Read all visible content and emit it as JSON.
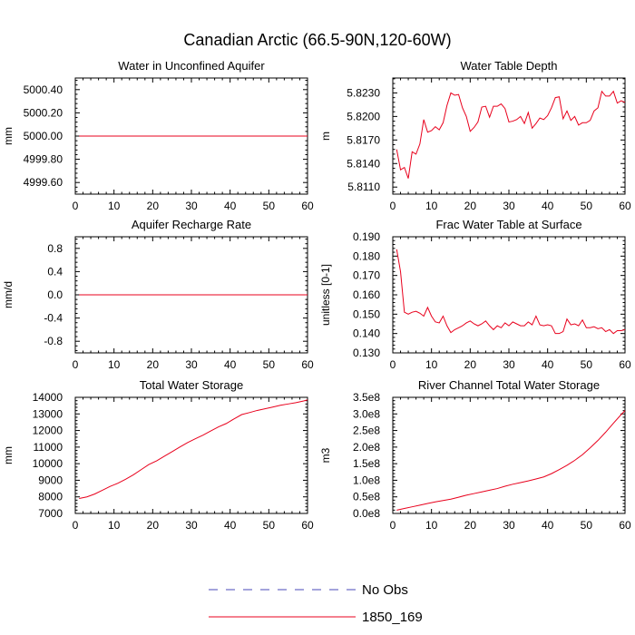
{
  "figure": {
    "title": "Canadian Arctic (66.5-90N,120-60W)",
    "legend": [
      {
        "label": "No Obs",
        "color": "#4a4ab8",
        "dash": "dashed"
      },
      {
        "label": "1850_169",
        "color": "#e8001c",
        "dash": "solid"
      }
    ]
  },
  "chart_data": [
    {
      "type": "line",
      "title": "Water in Unconfined Aquifer",
      "ylabel": "mm",
      "xlim": [
        0,
        60
      ],
      "ylim": [
        4999.5,
        5000.5
      ],
      "xticks": [
        0,
        10,
        20,
        30,
        40,
        50,
        60
      ],
      "yticks": [
        4999.6,
        4999.8,
        5000.0,
        5000.2,
        5000.4
      ],
      "yticklabels": [
        "4999.60",
        "4999.80",
        "5000.00",
        "5000.20",
        "5000.40"
      ],
      "series": [
        {
          "name": "1850_169",
          "color": "#e8001c",
          "x": [
            1,
            60
          ],
          "values": [
            5000.0,
            5000.0
          ]
        }
      ]
    },
    {
      "type": "line",
      "title": "Water Table Depth",
      "ylabel": "m",
      "xlim": [
        0,
        60
      ],
      "ylim": [
        5.8101,
        5.8249
      ],
      "xticks": [
        0,
        10,
        20,
        30,
        40,
        50,
        60
      ],
      "yticks": [
        5.811,
        5.814,
        5.817,
        5.82,
        5.823
      ],
      "yticklabels": [
        "5.8110",
        "5.8140",
        "5.8170",
        "5.8200",
        "5.8230"
      ],
      "series": [
        {
          "name": "1850_169",
          "color": "#e8001c",
          "x": [
            1,
            2,
            3,
            4,
            5,
            6,
            7,
            8,
            9,
            10,
            11,
            12,
            13,
            14,
            15,
            16,
            17,
            18,
            19,
            20,
            21,
            22,
            23,
            24,
            25,
            26,
            27,
            28,
            29,
            30,
            31,
            32,
            33,
            34,
            35,
            36,
            37,
            38,
            39,
            40,
            41,
            42,
            43,
            44,
            45,
            46,
            47,
            48,
            49,
            50,
            51,
            52,
            53,
            54,
            55,
            56,
            57,
            58,
            59,
            60
          ],
          "values": [
            5.8158,
            5.8132,
            5.8135,
            5.8121,
            5.8155,
            5.8152,
            5.8165,
            5.8196,
            5.818,
            5.8182,
            5.8187,
            5.8183,
            5.8192,
            5.8214,
            5.823,
            5.8227,
            5.8228,
            5.8211,
            5.82,
            5.8181,
            5.8186,
            5.8193,
            5.8212,
            5.8213,
            5.8199,
            5.8213,
            5.8213,
            5.8216,
            5.821,
            5.8193,
            5.8194,
            5.8196,
            5.82,
            5.8191,
            5.8205,
            5.8185,
            5.8191,
            5.8198,
            5.8196,
            5.8201,
            5.8211,
            5.8224,
            5.8225,
            5.8197,
            5.8207,
            5.8195,
            5.82,
            5.8189,
            5.8192,
            5.8192,
            5.8195,
            5.8207,
            5.8211,
            5.8232,
            5.8226,
            5.8226,
            5.8232,
            5.8217,
            5.822,
            5.8218
          ]
        }
      ]
    },
    {
      "type": "line",
      "title": "Aquifer Recharge Rate",
      "ylabel": "mm/d",
      "xlim": [
        0,
        60
      ],
      "ylim": [
        -1.0,
        1.0
      ],
      "xticks": [
        0,
        10,
        20,
        30,
        40,
        50,
        60
      ],
      "yticks": [
        -0.8,
        -0.4,
        0.0,
        0.4,
        0.8
      ],
      "yticklabels": [
        "-0.8",
        "-0.4",
        "0.0",
        "0.4",
        "0.8"
      ],
      "series": [
        {
          "name": "1850_169",
          "color": "#e8001c",
          "x": [
            1,
            60
          ],
          "values": [
            0.0,
            0.0
          ]
        }
      ]
    },
    {
      "type": "line",
      "title": "Frac Water Table at Surface",
      "ylabel": "unitless [0-1]",
      "xlim": [
        0,
        60
      ],
      "ylim": [
        0.13,
        0.19
      ],
      "xticks": [
        0,
        10,
        20,
        30,
        40,
        50,
        60
      ],
      "yticks": [
        0.13,
        0.14,
        0.15,
        0.16,
        0.17,
        0.18,
        0.19
      ],
      "yticklabels": [
        "0.130",
        "0.140",
        "0.150",
        "0.160",
        "0.170",
        "0.180",
        "0.190"
      ],
      "series": [
        {
          "name": "1850_169",
          "color": "#e8001c",
          "x": [
            1,
            2,
            3,
            4,
            5,
            6,
            7,
            8,
            9,
            10,
            11,
            12,
            13,
            14,
            15,
            16,
            17,
            18,
            19,
            20,
            21,
            22,
            23,
            24,
            25,
            26,
            27,
            28,
            29,
            30,
            31,
            32,
            33,
            34,
            35,
            36,
            37,
            38,
            39,
            40,
            41,
            42,
            43,
            44,
            45,
            46,
            47,
            48,
            49,
            50,
            51,
            52,
            53,
            54,
            55,
            56,
            57,
            58,
            59,
            60
          ],
          "values": [
            0.1835,
            0.172,
            0.151,
            0.15,
            0.151,
            0.1515,
            0.1505,
            0.149,
            0.1535,
            0.149,
            0.146,
            0.1455,
            0.149,
            0.144,
            0.1405,
            0.142,
            0.143,
            0.144,
            0.1455,
            0.1465,
            0.145,
            0.144,
            0.145,
            0.1465,
            0.144,
            0.142,
            0.144,
            0.143,
            0.1455,
            0.144,
            0.146,
            0.145,
            0.144,
            0.144,
            0.146,
            0.1445,
            0.149,
            0.1445,
            0.144,
            0.1445,
            0.144,
            0.14,
            0.14,
            0.141,
            0.1475,
            0.1445,
            0.145,
            0.144,
            0.147,
            0.143,
            0.143,
            0.1435,
            0.1425,
            0.143,
            0.141,
            0.142,
            0.14,
            0.1415,
            0.1415,
            0.142
          ]
        }
      ]
    },
    {
      "type": "line",
      "title": "Total Water Storage",
      "ylabel": "mm",
      "xlim": [
        0,
        60
      ],
      "ylim": [
        7000,
        14000
      ],
      "xticks": [
        0,
        10,
        20,
        30,
        40,
        50,
        60
      ],
      "yticks": [
        7000,
        8000,
        9000,
        10000,
        11000,
        12000,
        13000,
        14000
      ],
      "yticklabels": [
        "7000",
        "8000",
        "9000",
        "10000",
        "11000",
        "12000",
        "13000",
        "14000"
      ],
      "series": [
        {
          "name": "1850_169",
          "color": "#e8001c",
          "x": [
            1,
            3,
            5,
            7,
            9,
            11,
            13,
            15,
            17,
            19,
            21,
            23,
            25,
            27,
            29,
            31,
            33,
            35,
            37,
            39,
            41,
            43,
            45,
            47,
            49,
            51,
            53,
            55,
            57,
            59,
            60
          ],
          "values": [
            7900,
            8000,
            8170,
            8400,
            8630,
            8820,
            9060,
            9330,
            9640,
            9950,
            10170,
            10450,
            10720,
            11000,
            11270,
            11500,
            11720,
            11970,
            12220,
            12420,
            12700,
            12960,
            13080,
            13210,
            13310,
            13410,
            13520,
            13600,
            13680,
            13780,
            13850
          ]
        }
      ]
    },
    {
      "type": "line",
      "title": "River Channel Total Water Storage",
      "ylabel": "m3",
      "xlim": [
        0,
        60
      ],
      "ylim": [
        0,
        350000000.0
      ],
      "xticks": [
        0,
        10,
        20,
        30,
        40,
        50,
        60
      ],
      "yticks": [
        0,
        50000000.0,
        100000000.0,
        150000000.0,
        200000000.0,
        250000000.0,
        300000000.0,
        350000000.0
      ],
      "yticklabels": [
        "0.0e8",
        "0.5e8",
        "1.0e8",
        "1.5e8",
        "2.0e8",
        "2.5e8",
        "3.0e8",
        "3.5e8"
      ],
      "series": [
        {
          "name": "1850_169",
          "color": "#e8001c",
          "x": [
            1,
            3,
            5,
            7,
            9,
            11,
            13,
            15,
            17,
            19,
            21,
            23,
            25,
            27,
            29,
            31,
            33,
            35,
            37,
            39,
            41,
            43,
            45,
            47,
            49,
            51,
            53,
            55,
            57,
            59,
            60
          ],
          "values": [
            10000000.0,
            15000000.0,
            20000000.0,
            25000000.0,
            30000000.0,
            35000000.0,
            39000000.0,
            43000000.0,
            49000000.0,
            55000000.0,
            60000000.0,
            65000000.0,
            70000000.0,
            75000000.0,
            82000000.0,
            88000000.0,
            93000000.0,
            98000000.0,
            104000000.0,
            110000000.0,
            120000000.0,
            132000000.0,
            145000000.0,
            160000000.0,
            177000000.0,
            198000000.0,
            220000000.0,
            245000000.0,
            272000000.0,
            298000000.0,
            310000000.0
          ]
        }
      ]
    }
  ]
}
